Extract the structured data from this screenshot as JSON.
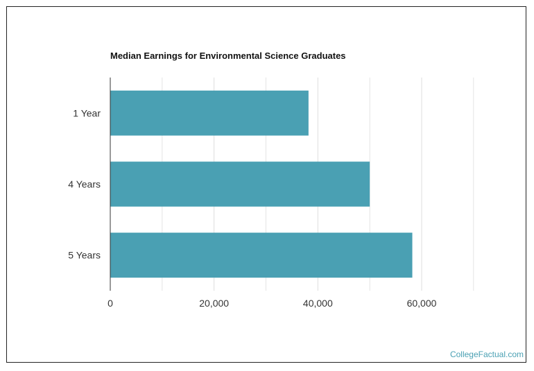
{
  "chart_data": {
    "type": "bar",
    "orientation": "horizontal",
    "title": "Median Earnings for Environmental Science Graduates",
    "categories": [
      "1 Year",
      "4 Years",
      "5 Years"
    ],
    "values": [
      38200,
      50000,
      58200
    ],
    "xlim": [
      0,
      60000
    ],
    "xticks": [
      "0",
      "20,000",
      "40,000",
      "60,000"
    ],
    "xtick_values": [
      0,
      20000,
      40000,
      60000
    ],
    "grid": true,
    "bar_color": "#4aa0b3",
    "grid_color": "#dddddd"
  },
  "credit": "CollegeFactual.com"
}
